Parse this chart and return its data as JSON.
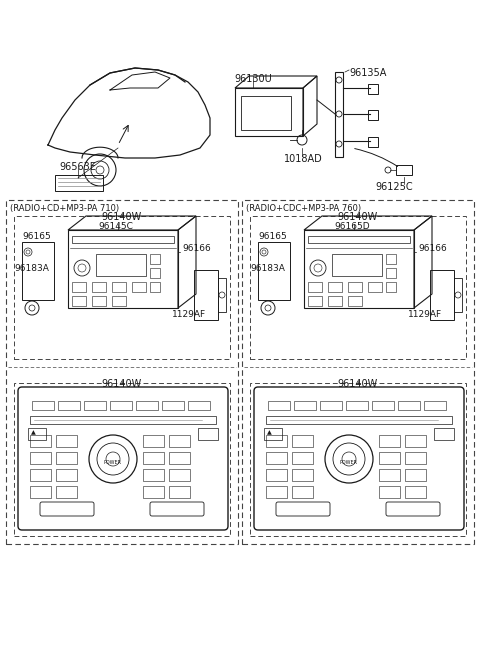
{
  "bg_color": "#ffffff",
  "line_color": "#1a1a1a",
  "dash_color": "#444444",
  "gray_color": "#888888",
  "fig_width": 4.8,
  "fig_height": 6.55,
  "dpi": 100,
  "top": {
    "car_label": "96563E",
    "monitor_label": "96130U",
    "bracket_label": "96135A",
    "bolt_label": "1018AD",
    "connector_label": "96125C"
  },
  "left_upper": {
    "title": "(RADIO+CD+MP3-PA 710)",
    "radio_label": "96140W",
    "p1": "96165",
    "p2": "96145C",
    "p3": "96166",
    "p4": "96183A",
    "p5": "1129AF"
  },
  "right_upper": {
    "title": "(RADIO+CDC+MP3-PA 760)",
    "radio_label": "96140W",
    "p1": "96165",
    "p2": "96165D",
    "p3": "96166",
    "p4": "96183A",
    "p5": "1129AF"
  },
  "left_lower": {
    "label": "96140W"
  },
  "right_lower": {
    "label": "96140W"
  }
}
